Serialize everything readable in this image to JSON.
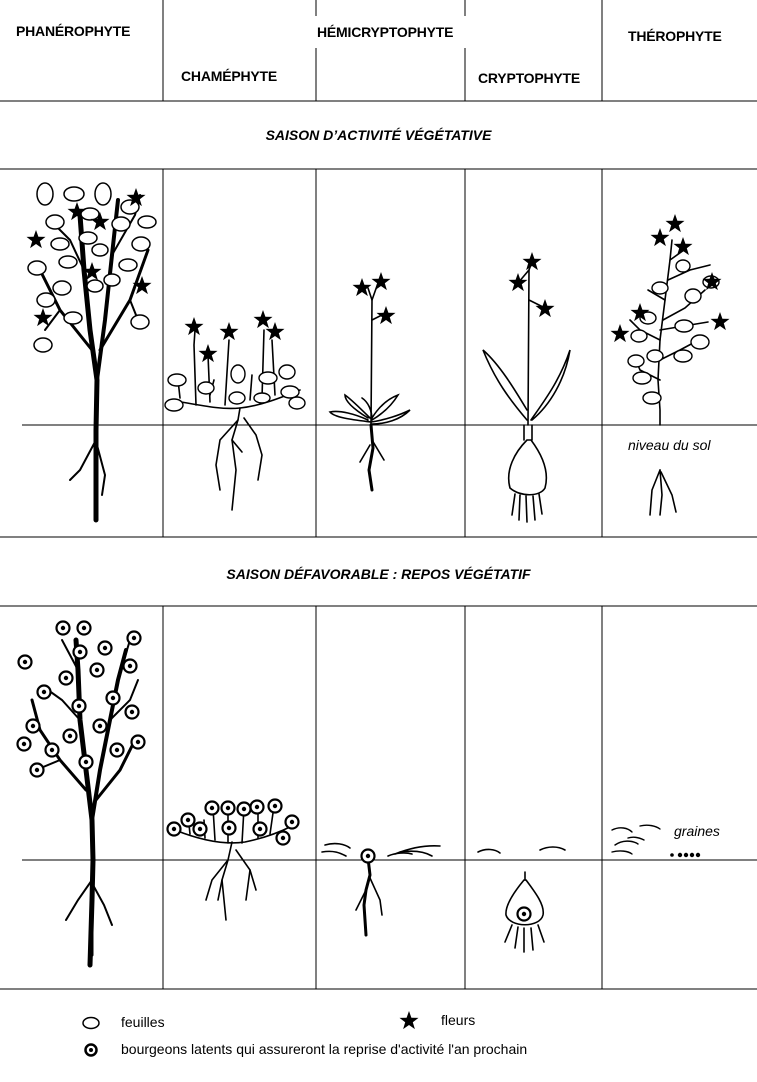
{
  "columns": {
    "phanerophyte": "PHANÉROPHYTE",
    "chamephyte": "CHAMÉPHYTE",
    "hemicryptophyte": "HÉMICRYPTOPHYTE",
    "cryptophyte": "CRYPTOPHYTE",
    "therophyte": "THÉROPHYTE"
  },
  "seasons": {
    "active": "SAISON D’ACTIVITÉ VÉGÉTATIVE",
    "unfavorable": "SAISON DÉFAVORABLE : REPOS VÉGÉTATIF"
  },
  "labels": {
    "ground": "niveau du sol",
    "seeds": "graines"
  },
  "legend": {
    "leaves": "feuilles",
    "flowers": "fleurs",
    "buds": "bourgeons latents qui assureront la reprise d'activité l'an prochain"
  },
  "icons": {
    "leaf": "leaf-ellipse-icon",
    "flower": "star-icon",
    "bud": "bud-dot-icon"
  }
}
